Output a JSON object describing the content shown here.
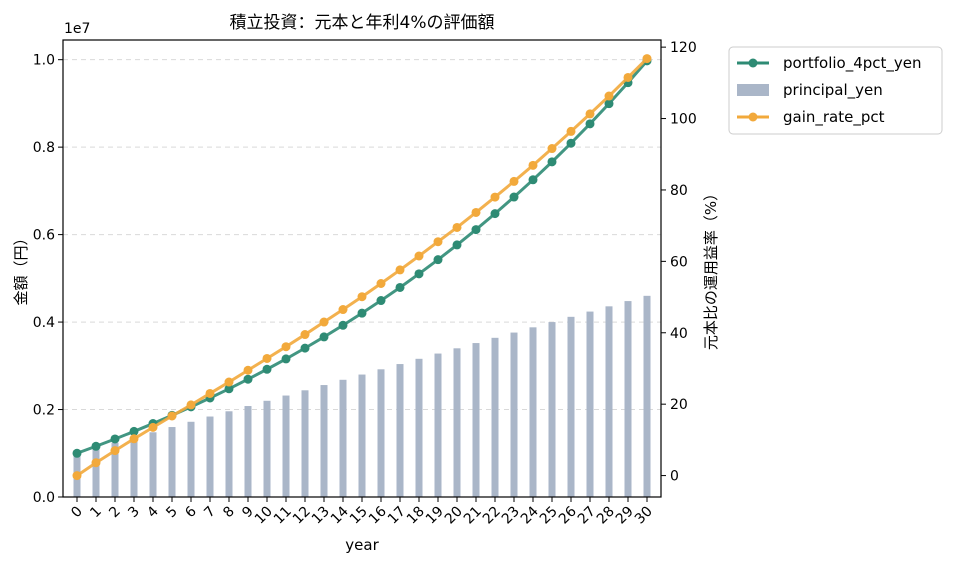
{
  "chart_data": {
    "type": "line",
    "title": "積立投資：元本と年利4%の評価額",
    "xlabel": "year",
    "ylabel_left": "金額（円）",
    "ylabel_right": "元本比の運用益率（%）",
    "left_axis_offset": "1e7",
    "x": [
      0,
      1,
      2,
      3,
      4,
      5,
      6,
      7,
      8,
      9,
      10,
      11,
      12,
      13,
      14,
      15,
      16,
      17,
      18,
      19,
      20,
      21,
      22,
      23,
      24,
      25,
      26,
      27,
      28,
      29,
      30
    ],
    "x_ticks": [
      "0",
      "1",
      "2",
      "3",
      "4",
      "5",
      "6",
      "7",
      "8",
      "9",
      "10",
      "11",
      "12",
      "13",
      "14",
      "15",
      "16",
      "17",
      "18",
      "19",
      "20",
      "21",
      "22",
      "23",
      "24",
      "25",
      "26",
      "27",
      "28",
      "29",
      "30"
    ],
    "ylim_left": [
      0,
      10450000
    ],
    "yticks_left": [
      "0.0",
      "0.2",
      "0.4",
      "0.6",
      "0.8",
      "1.0"
    ],
    "ylim_right": [
      -6,
      122
    ],
    "yticks_right": [
      "0",
      "20",
      "40",
      "60",
      "80",
      "100",
      "120"
    ],
    "grid": "horizontal-dashed",
    "legend_position": "outside-top-right",
    "series": [
      {
        "name": "portfolio_4pct_yen",
        "axis": "left",
        "kind": "line-marker",
        "color": "#2e8b74",
        "values": [
          1000000,
          1160000,
          1326400,
          1499456,
          1679434,
          1866611,
          2061276,
          2263727,
          2474276,
          2693247,
          2920977,
          3157816,
          3404129,
          3660294,
          3926706,
          4203774,
          4491925,
          4791602,
          5103266,
          5427397,
          5764493,
          6115073,
          6479676,
          6858863,
          7253218,
          7663346,
          8089880,
          8533475,
          8994814,
          9474607,
          9973591
        ]
      },
      {
        "name": "principal_yen",
        "axis": "left",
        "kind": "bar",
        "color": "#aab6c8",
        "values": [
          1000000,
          1120000,
          1240000,
          1360000,
          1480000,
          1600000,
          1720000,
          1840000,
          1960000,
          2080000,
          2200000,
          2320000,
          2440000,
          2560000,
          2680000,
          2800000,
          2920000,
          3040000,
          3160000,
          3280000,
          3400000,
          3520000,
          3640000,
          3760000,
          3880000,
          4000000,
          4120000,
          4240000,
          4360000,
          4480000,
          4600000
        ]
      },
      {
        "name": "gain_rate_pct",
        "axis": "right",
        "kind": "line-marker",
        "color": "#f2a93b",
        "values": [
          0,
          3.6,
          7.0,
          10.3,
          13.5,
          16.7,
          19.8,
          23.0,
          26.2,
          29.5,
          32.8,
          36.1,
          39.5,
          43.0,
          46.5,
          50.1,
          53.8,
          57.6,
          61.5,
          65.5,
          69.5,
          73.7,
          78.0,
          82.4,
          86.9,
          91.6,
          96.4,
          101.3,
          106.3,
          111.5,
          116.8
        ]
      }
    ]
  }
}
